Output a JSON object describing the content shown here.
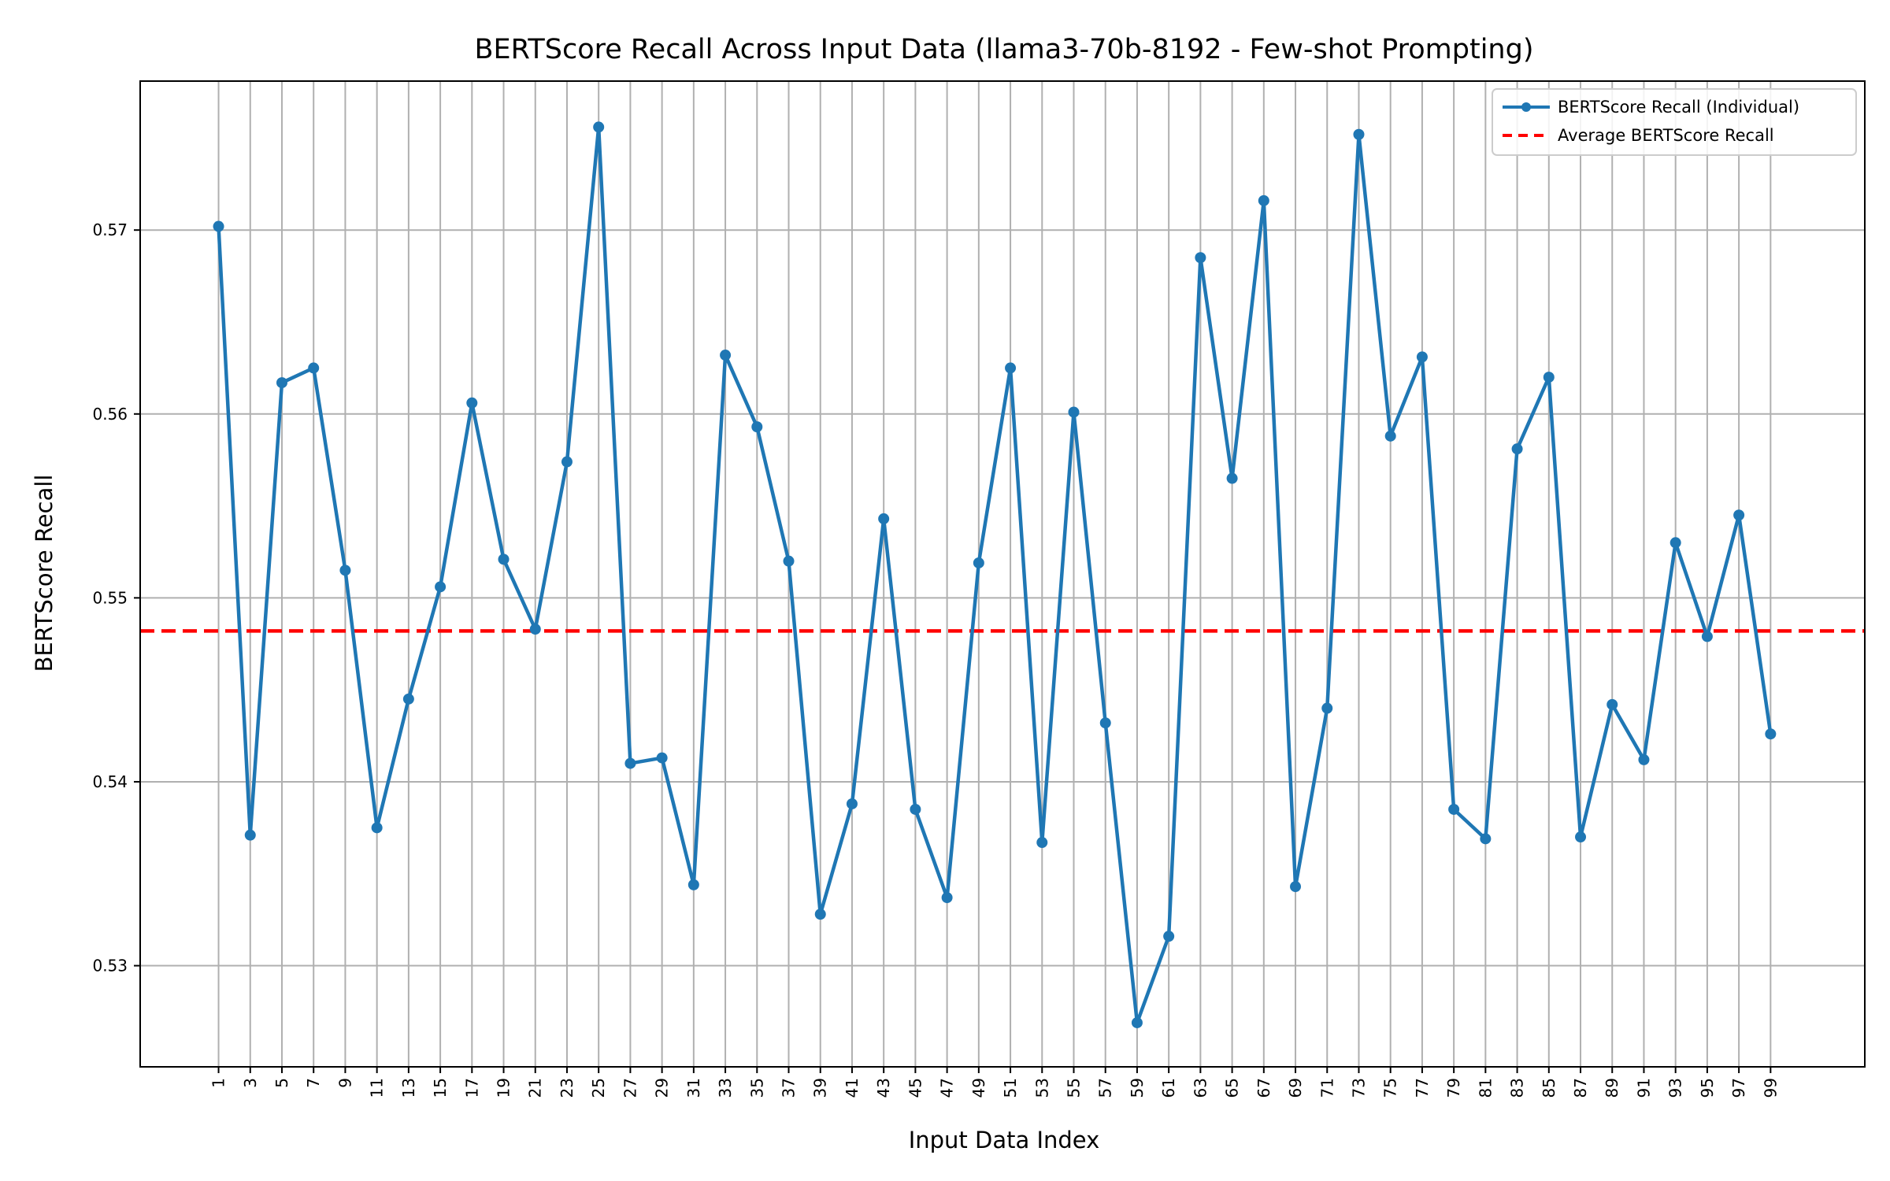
{
  "chart_data": {
    "type": "line",
    "title": "BERTScore Recall Across Input Data (llama3-70b-8192 - Few-shot Prompting)",
    "xlabel": "Input Data Index",
    "ylabel": "BERTScore Recall",
    "x": [
      1,
      3,
      5,
      7,
      9,
      11,
      13,
      15,
      17,
      19,
      21,
      23,
      25,
      27,
      29,
      31,
      33,
      35,
      37,
      39,
      41,
      43,
      45,
      47,
      49,
      51,
      53,
      55,
      57,
      59,
      61,
      63,
      65,
      67,
      69,
      71,
      73,
      75,
      77,
      79,
      81,
      83,
      85,
      87,
      89,
      91,
      93,
      95,
      97,
      99
    ],
    "xticks": [
      1,
      3,
      5,
      7,
      9,
      11,
      13,
      15,
      17,
      19,
      21,
      23,
      25,
      27,
      29,
      31,
      33,
      35,
      37,
      39,
      41,
      43,
      45,
      47,
      49,
      51,
      53,
      55,
      57,
      59,
      61,
      63,
      65,
      67,
      69,
      71,
      73,
      75,
      77,
      79,
      81,
      83,
      85,
      87,
      89,
      91,
      93,
      95,
      97,
      99
    ],
    "yticks": [
      0.53,
      0.54,
      0.55,
      0.56,
      0.57
    ],
    "ytick_labels": [
      "0.53",
      "0.54",
      "0.55",
      "0.56",
      "0.57"
    ],
    "xlim": [
      -3.95,
      104.95
    ],
    "ylim": [
      0.5245,
      0.5781
    ],
    "grid": true,
    "legend_position": "top-right",
    "series": [
      {
        "name": "BERTScore Recall (Individual)",
        "color": "#1f77b4",
        "style": "solid-with-markers",
        "values": [
          0.5702,
          0.5371,
          0.5617,
          0.5625,
          0.5515,
          0.5375,
          0.5445,
          0.5506,
          0.5606,
          0.5521,
          0.5483,
          0.5574,
          0.5756,
          0.541,
          0.5413,
          0.5344,
          0.5632,
          0.5593,
          0.552,
          0.5328,
          0.5388,
          0.5543,
          0.5385,
          0.5337,
          0.5519,
          0.5625,
          0.5367,
          0.5601,
          0.5432,
          0.5269,
          0.5316,
          0.5685,
          0.5565,
          0.5716,
          0.5343,
          0.544,
          0.5752,
          0.5588,
          0.5631,
          0.5385,
          0.5369,
          0.5581,
          0.562,
          0.537,
          0.5442,
          0.5412,
          0.553,
          0.5479,
          0.5545,
          0.5426
        ]
      },
      {
        "name": "Average BERTScore Recall",
        "color": "#ff0000",
        "style": "dashed",
        "value": 0.5482
      }
    ]
  }
}
